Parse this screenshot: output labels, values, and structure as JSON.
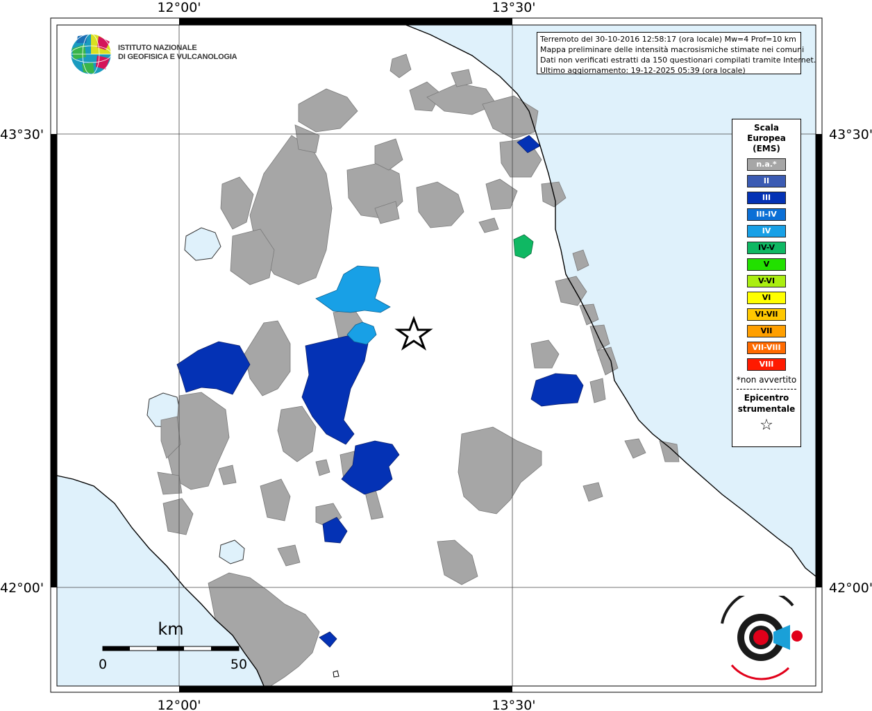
{
  "header": {
    "info_lines": [
      "Terremoto del 30-10-2016 12:58:17 (ora locale) Mw=4 Prof=10 km",
      "Mappa preliminare delle intensità macrosismiche stimate nei comuni",
      "Dati non verificati estratti da 150 questionari compilati tramite Internet.",
      "Ultimo aggiornamento: 19-12-2025 05:39 (ora locale)"
    ]
  },
  "logo": {
    "lines": [
      "ISTITUTO NAZIONALE",
      "DI GEOFISICA E VULCANOLOGIA"
    ]
  },
  "axes": {
    "top": [
      "12°00'",
      "13°30'"
    ],
    "bottom": [
      "12°00'",
      "13°30'"
    ],
    "left": [
      "43°30'",
      "42°00'"
    ],
    "right": [
      "43°30'",
      "42°00'"
    ]
  },
  "legend": {
    "title_lines": [
      "Scala",
      "Europea",
      "(EMS)"
    ],
    "items": [
      {
        "label": "n.a.*",
        "color": "#a6a6a6",
        "text": "#ffffff"
      },
      {
        "label": "II",
        "color": "#3b5bb3",
        "text": "#ffffff"
      },
      {
        "label": "III",
        "color": "#0432b5",
        "text": "#ffffff"
      },
      {
        "label": "III-IV",
        "color": "#0b6fd6",
        "text": "#ffffff"
      },
      {
        "label": "IV",
        "color": "#18a0e6",
        "text": "#ffffff"
      },
      {
        "label": "IV-V",
        "color": "#0fb863",
        "text": "#000000"
      },
      {
        "label": "V",
        "color": "#22e000",
        "text": "#000000"
      },
      {
        "label": "V-VI",
        "color": "#aaee11",
        "text": "#000000"
      },
      {
        "label": "VI",
        "color": "#ffff00",
        "text": "#000000"
      },
      {
        "label": "VI-VII",
        "color": "#ffc800",
        "text": "#000000"
      },
      {
        "label": "VII",
        "color": "#ff9f00",
        "text": "#000000"
      },
      {
        "label": "VII-VIII",
        "color": "#ff6a00",
        "text": "#ffffff"
      },
      {
        "label": "VIII",
        "color": "#ff1a00",
        "text": "#ffffff"
      }
    ],
    "note": "*non avvertito",
    "epicenter_lines": [
      "Epicentro",
      "strumentale"
    ],
    "star": "☆"
  },
  "scale": {
    "unit": "km",
    "min": "0",
    "max": "50"
  },
  "colors": {
    "sea": "#dff1fb",
    "land": "#ffffff",
    "na": "#a6a6a6",
    "iii": "#0432b5",
    "iv": "#18a0e6",
    "ivv": "#0fb863"
  }
}
